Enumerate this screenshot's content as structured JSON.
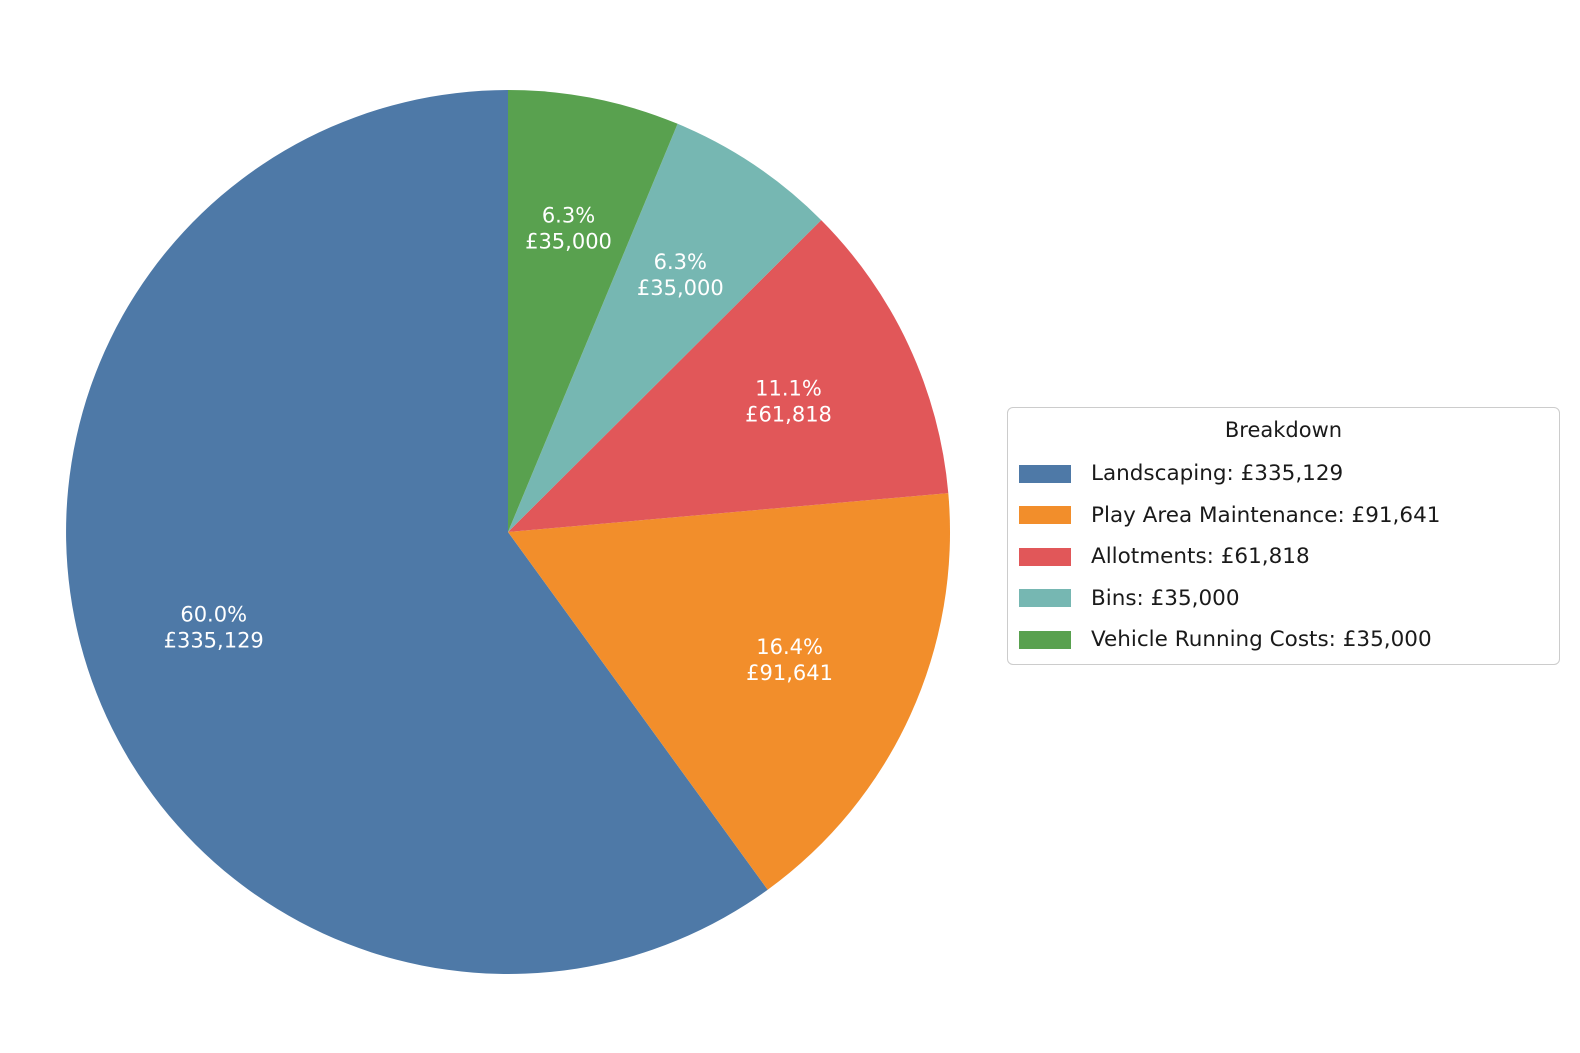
{
  "background": "#ffffff",
  "chart_data": {
    "type": "pie",
    "title": "",
    "legend": {
      "title": "Breakdown",
      "position": "right"
    },
    "slices": [
      {
        "label": "Landscaping",
        "value": 335129,
        "pct_display": "60.0%",
        "value_display": "£335,129",
        "legend_label": "Landscaping: £335,129",
        "color": "#4E79A7"
      },
      {
        "label": "Play Area Maintenance",
        "value": 91641,
        "pct_display": "16.4%",
        "value_display": "£91,641",
        "legend_label": "Play Area Maintenance: £91,641",
        "color": "#F28E2B"
      },
      {
        "label": "Allotments",
        "value": 61818,
        "pct_display": "11.1%",
        "value_display": "£61,818",
        "legend_label": "Allotments: £61,818",
        "color": "#E15759"
      },
      {
        "label": "Bins",
        "value": 35000,
        "pct_display": "6.3%",
        "value_display": "£35,000",
        "legend_label": "Bins: £35,000",
        "color": "#76B7B2"
      },
      {
        "label": "Vehicle Running Costs",
        "value": 35000,
        "pct_display": "6.3%",
        "value_display": "£35,000",
        "legend_label": "Vehicle Running Costs: £35,000",
        "color": "#59A14F"
      }
    ],
    "layout": {
      "start_angle": 90,
      "direction": "counterclockwise",
      "label_distance": 0.7,
      "label_color": "#ffffff",
      "slice_label_lines": [
        "pct_display",
        "value_display"
      ]
    }
  }
}
